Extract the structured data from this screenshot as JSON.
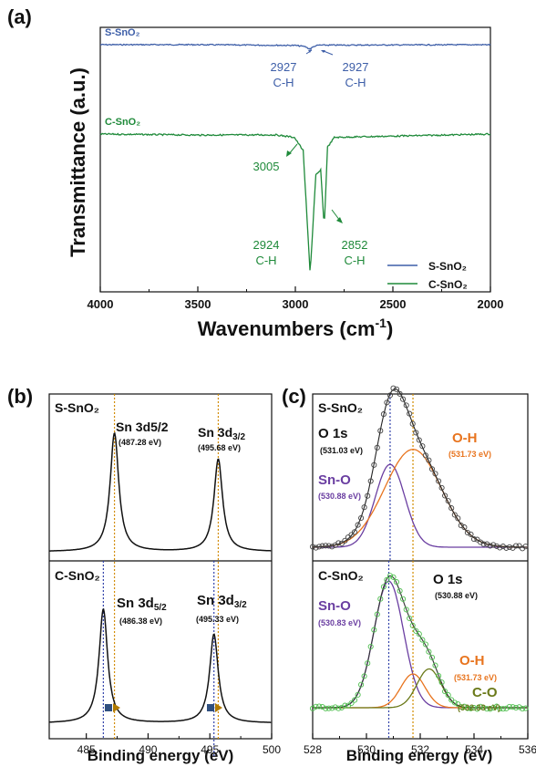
{
  "panels": {
    "a": "(a)",
    "b": "(b)",
    "c": "(c)"
  },
  "colors": {
    "s": "#3d5ea8",
    "c": "#1f8a3a",
    "black": "#1a1a1a",
    "purple": "#6a3ea1",
    "orange": "#e8741e",
    "olive": "#6b7a1a",
    "dotOrange": "#d28c00",
    "dotBlue": "#3344aa",
    "circleGreen": "#4fbf4f"
  },
  "chart_data": [
    {
      "type": "line",
      "panel": "a",
      "xlabel": "Wavenumbers (cm",
      "xlabel_sup": "-1",
      "xlabel_end": ")",
      "ylabel": "Transmittance (a.u.)",
      "xlim": [
        4000,
        2000
      ],
      "xticks": [
        "4000",
        "3500",
        "3000",
        "2500",
        "2000"
      ],
      "series": [
        {
          "name": "S-SnO₂",
          "color": "#3d5ea8",
          "x": [
            4000,
            3500,
            3000,
            2950,
            2927,
            2900,
            2880,
            2000
          ],
          "y": [
            0.0,
            0.0,
            -0.003,
            -0.008,
            -0.018,
            -0.006,
            -0.002,
            0.0
          ]
        },
        {
          "name": "C-SnO₂",
          "color": "#1f8a3a",
          "x": [
            4000,
            3500,
            3100,
            3005,
            2960,
            2924,
            2895,
            2870,
            2852,
            2835,
            2800,
            2000
          ],
          "y": [
            0.0,
            -0.006,
            -0.005,
            -0.02,
            -0.1,
            -0.85,
            -0.25,
            -0.22,
            -0.57,
            -0.08,
            -0.02,
            0.0
          ]
        }
      ],
      "series_labels": {
        "s": "S-SnO₂",
        "c": "C-SnO₂"
      },
      "annotations": {
        "s1_num": "2927",
        "s1_txt": "C-H",
        "s2_num": "2927",
        "s2_txt": "C-H",
        "c1": "3005",
        "c2_num": "2924",
        "c2_txt": "C-H",
        "c3_num": "2852",
        "c3_txt": "C-H"
      },
      "legend": "bottom-right"
    },
    {
      "type": "line",
      "panel": "b",
      "xlabel": "Binding energy (eV)",
      "xlim": [
        482,
        500
      ],
      "xticks": [
        "485",
        "490",
        "495",
        "500"
      ],
      "top": {
        "label": "S-SnO₂",
        "peaks": [
          487.28,
          495.68
        ],
        "heights": [
          1.0,
          0.78
        ],
        "peak1_name": "Sn 3d5/2",
        "peak1_val": "(487.28 eV)",
        "peak2_name": "Sn 3d",
        "peak2_sub": "3/2",
        "peak2_val": "(495.68 eV)"
      },
      "bottom": {
        "label": "C-SnO₂",
        "peaks": [
          486.38,
          495.33
        ],
        "heights": [
          1.0,
          0.78
        ],
        "peak1_name": "Sn 3d",
        "peak1_sub": "5/2",
        "peak1_val": "(486.38 eV)",
        "peak2_name": "Sn 3d",
        "peak2_sub": "3/2",
        "peak2_val": "(495.33 eV)"
      }
    },
    {
      "type": "line",
      "panel": "c",
      "xlabel": "Binding energy (eV)",
      "xlim": [
        528,
        536
      ],
      "xticks": [
        "528",
        "530",
        "532",
        "534",
        "536"
      ],
      "top": {
        "label": "S-SnO₂",
        "o1s": "O 1s",
        "o1s_val": "(531.03 eV)",
        "sno": "Sn-O",
        "sno_val": "(530.88 eV)",
        "oh": "O-H",
        "oh_val": "(531.73 eV)",
        "components": [
          {
            "name": "Sn-O",
            "center": 530.88,
            "height": 0.55,
            "width": 0.55
          },
          {
            "name": "O-H",
            "center": 531.73,
            "height": 0.65,
            "width": 1.05
          }
        ]
      },
      "bottom": {
        "label": "C-SnO₂",
        "o1s": "O 1s",
        "o1s_val": "(530.88 eV)",
        "sno": "Sn-O",
        "sno_val": "(530.83 eV)",
        "oh": "O-H",
        "oh_val": "(531.73 eV)",
        "co": "C-O",
        "co_val": "(532.33 eV)",
        "components": [
          {
            "name": "Sn-O",
            "center": 530.83,
            "height": 0.75,
            "width": 0.55
          },
          {
            "name": "O-H",
            "center": 531.73,
            "height": 0.2,
            "width": 0.45
          },
          {
            "name": "C-O",
            "center": 532.33,
            "height": 0.23,
            "width": 0.45
          }
        ]
      }
    }
  ]
}
